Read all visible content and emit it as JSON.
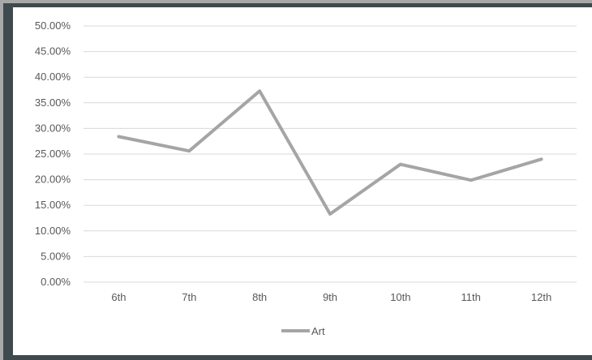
{
  "chart_data": {
    "type": "line",
    "categories": [
      "6th",
      "7th",
      "8th",
      "9th",
      "10th",
      "11th",
      "12th"
    ],
    "series": [
      {
        "name": "Art",
        "values": [
          0.284,
          0.256,
          0.373,
          0.133,
          0.23,
          0.199,
          0.24
        ],
        "color": "#a5a5a5"
      }
    ],
    "y_tick_labels": [
      "0.00%",
      "5.00%",
      "10.00%",
      "15.00%",
      "20.00%",
      "25.00%",
      "30.00%",
      "35.00%",
      "40.00%",
      "45.00%",
      "50.00%"
    ],
    "ylim": [
      0,
      0.5
    ],
    "y_step": 0.05,
    "grid": true,
    "legend_position": "bottom",
    "colors": {
      "gridline": "#d9d9d9",
      "tick_text": "#595959",
      "frame": "#3e4a4d"
    }
  }
}
